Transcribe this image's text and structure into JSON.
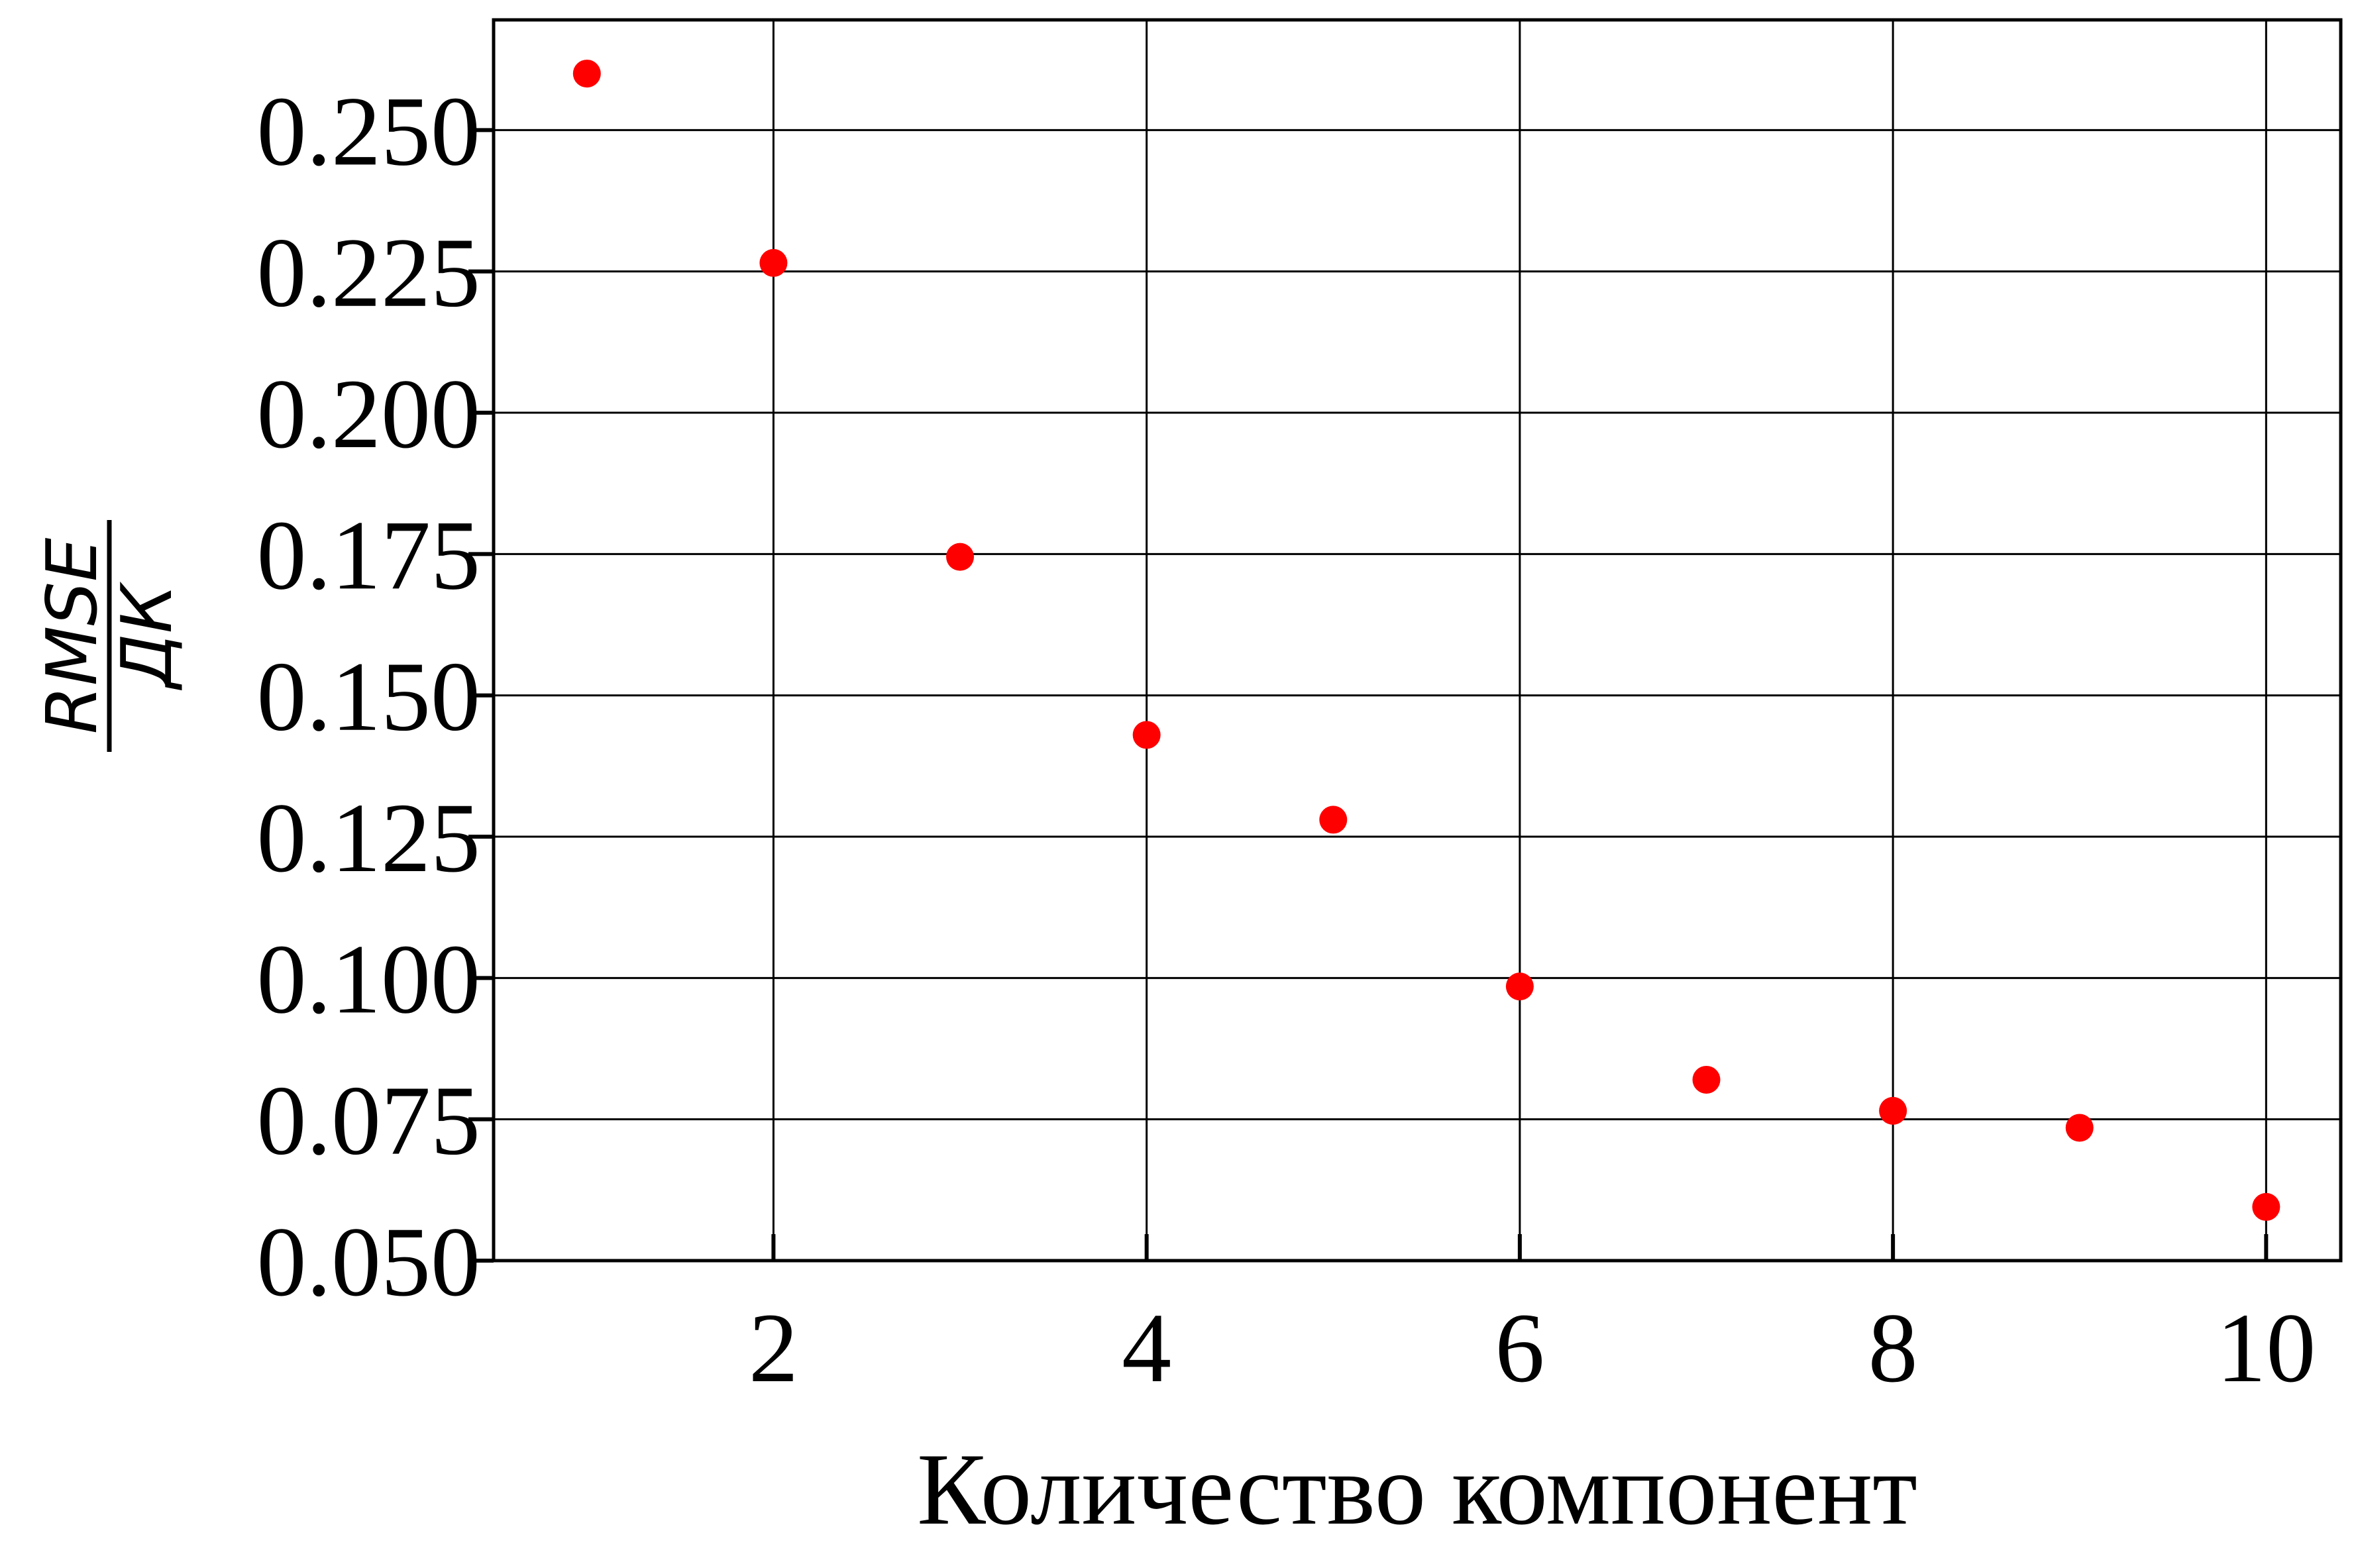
{
  "chart_data": {
    "type": "scatter",
    "xlabel": "Количество компонент",
    "ylabel_numerator": "RMSE",
    "ylabel_denominator": "ДК",
    "xlim": [
      0.5,
      10.4
    ],
    "ylim": [
      0.05,
      0.2695
    ],
    "xticks": [
      2,
      4,
      6,
      8,
      10
    ],
    "xtick_labels": [
      "2",
      "4",
      "6",
      "8",
      "10"
    ],
    "yticks": [
      0.05,
      0.075,
      0.1,
      0.125,
      0.15,
      0.175,
      0.2,
      0.225,
      0.25
    ],
    "ytick_labels": [
      "0.050",
      "0.075",
      "0.100",
      "0.125",
      "0.150",
      "0.175",
      "0.200",
      "0.225",
      "0.250"
    ],
    "grid": true,
    "marker_color": "#ff0000",
    "series": [
      {
        "x": [
          1,
          2,
          3,
          4,
          5,
          6,
          7,
          8,
          9,
          10
        ],
        "y": [
          0.26,
          0.2265,
          0.1745,
          0.143,
          0.128,
          0.0985,
          0.082,
          0.0765,
          0.0735,
          0.0595
        ]
      }
    ]
  }
}
